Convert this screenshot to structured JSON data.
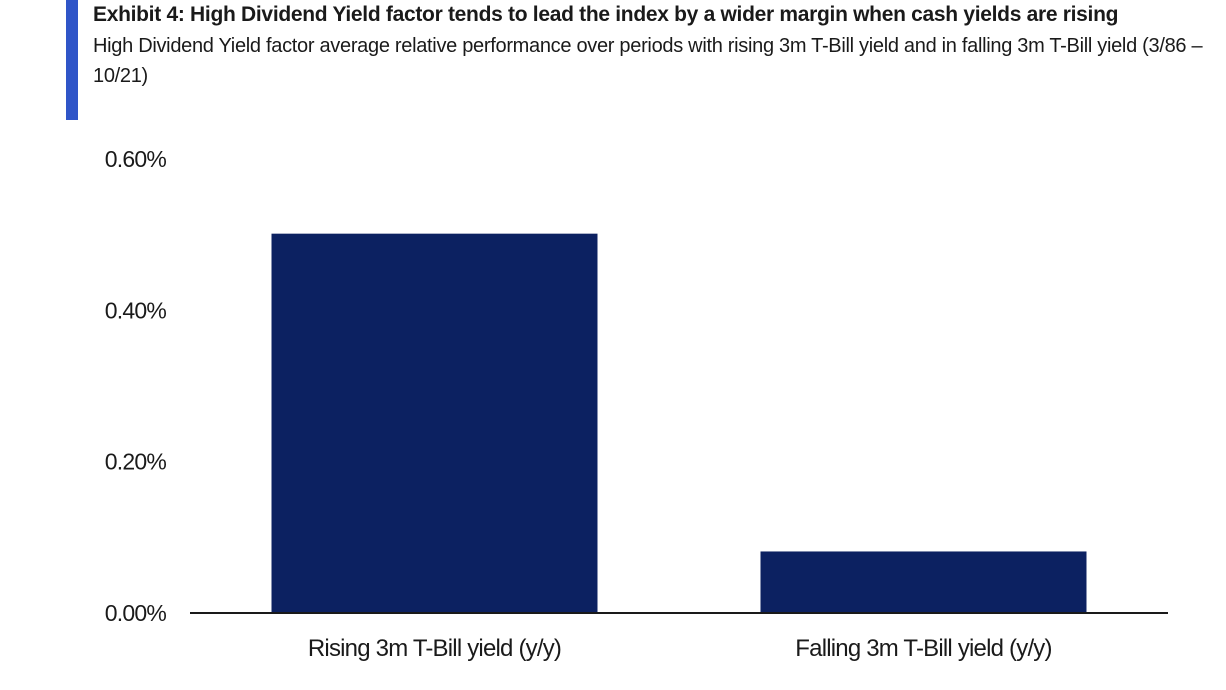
{
  "title": "Exhibit 4: High Dividend Yield factor tends to lead the index by a wider margin when cash yields are rising",
  "subtitle": "High Dividend Yield factor average relative performance over periods with rising 3m T-Bill yield and in falling 3m T-Bill yield (3/86 – 10/21)",
  "colors": {
    "accent": "#2f55c8",
    "bar": "#0c2161",
    "axis": "#1a1a1a"
  },
  "chart_data": {
    "type": "bar",
    "categories": [
      "Rising 3m T-Bill yield (y/y)",
      "Falling 3m T-Bill yield (y/y)"
    ],
    "values": [
      0.5,
      0.08
    ],
    "y_ticks": [
      "0.00%",
      "0.20%",
      "0.40%",
      "0.60%"
    ],
    "y_tick_values": [
      0,
      0.2,
      0.4,
      0.6
    ],
    "ylim": [
      0,
      0.6
    ],
    "grid": false,
    "legend": "none"
  }
}
